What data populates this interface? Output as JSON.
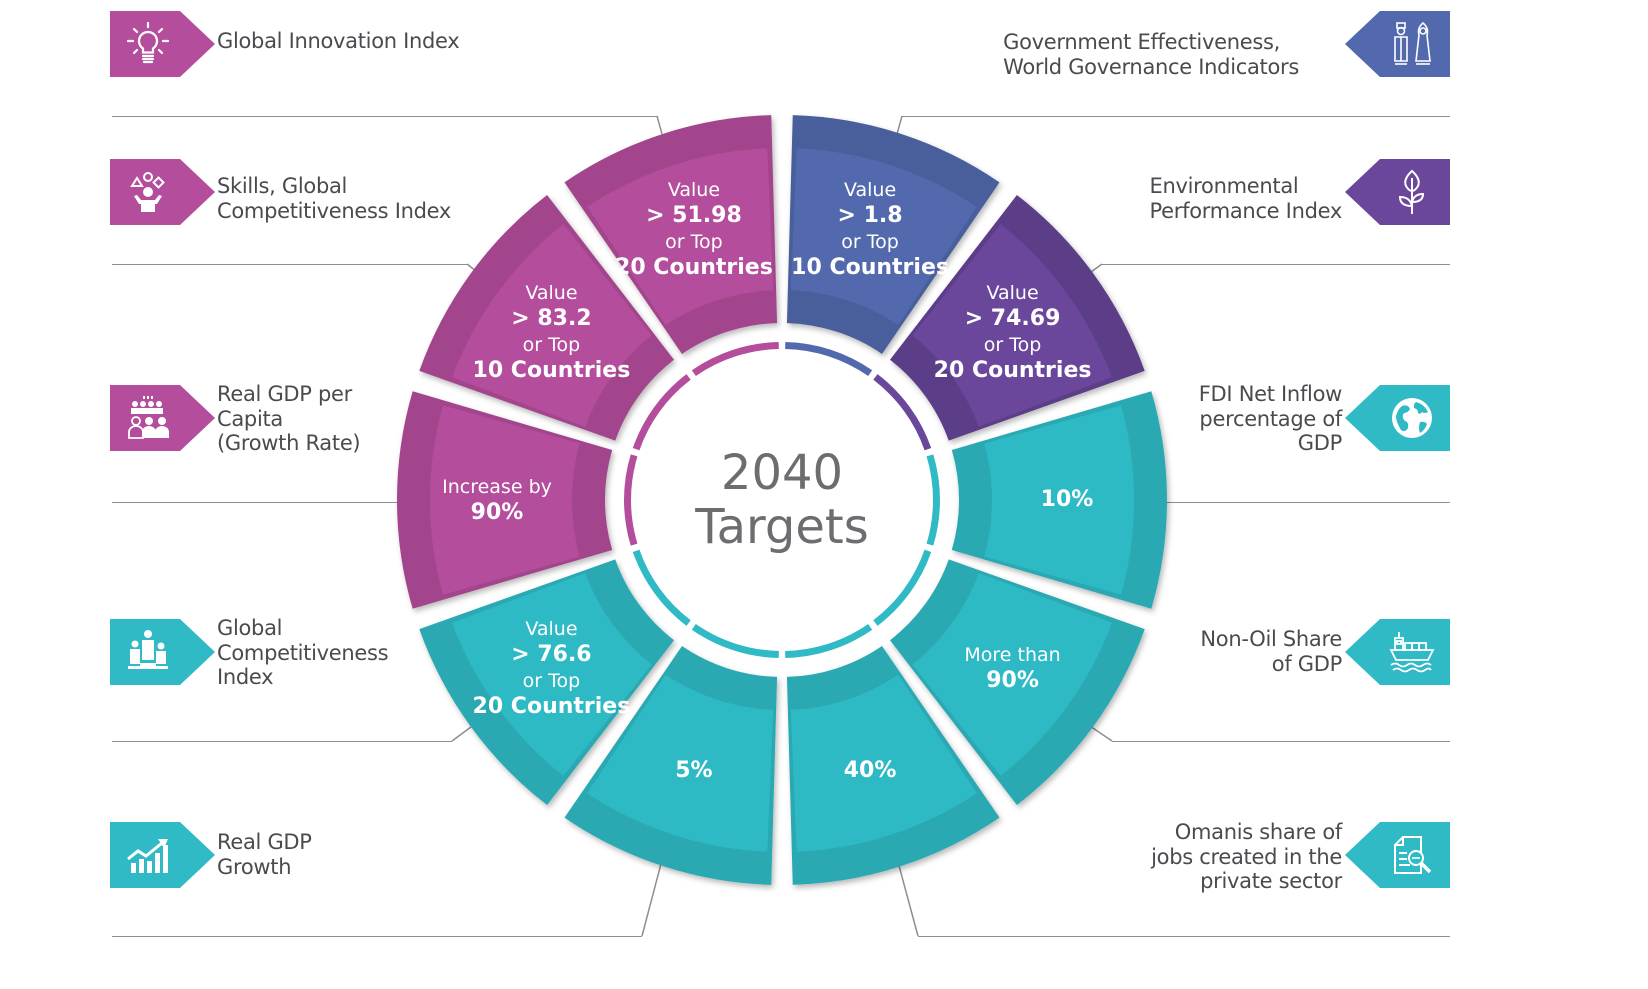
{
  "center": {
    "year": "2040",
    "word": "Targets"
  },
  "colors": {
    "magenta": "#b44e9c",
    "magenta_dark": "#a3458d",
    "blue": "#5269ae",
    "blue_dark": "#4a5e9c",
    "purple": "#6a479b",
    "purple_dark": "#5c3d88",
    "teal": "#2fbac5",
    "teal_dark": "#2aa9b3",
    "text": "#4b4a4f",
    "rule": "#8e8e8e"
  },
  "segments": [
    {
      "indicator": "Government Effectiveness, World Governance Indicators",
      "color": "blue",
      "line1": "Value",
      "line2": "> 1.8",
      "line3": "or Top",
      "line4": "10 Countries"
    },
    {
      "indicator": "Environmental Performance Index",
      "color": "purple",
      "line1": "Value",
      "line2": "> 74.69",
      "line3": "or Top",
      "line4": "20 Countries"
    },
    {
      "indicator": "FDI Net Inflow percentage of GDP",
      "color": "teal",
      "line1": "",
      "line2": "10%",
      "line3": "",
      "line4": ""
    },
    {
      "indicator": "Non-Oil Share of GDP",
      "color": "teal",
      "line1": "More than",
      "line2": "90%",
      "line3": "",
      "line4": ""
    },
    {
      "indicator": "Omanis share of jobs created in the private sector",
      "color": "teal",
      "line1": "",
      "line2": "40%",
      "line3": "",
      "line4": ""
    },
    {
      "indicator": "Real GDP Growth",
      "color": "teal",
      "line1": "",
      "line2": "5%",
      "line3": "",
      "line4": ""
    },
    {
      "indicator": "Global Competitiveness Index",
      "color": "teal",
      "line1": "Value",
      "line2": "> 76.6",
      "line3": "or Top",
      "line4": "20 Countries"
    },
    {
      "indicator": "Real GDP per Capita (Growth Rate)",
      "color": "magenta",
      "line1": "Increase by",
      "line2": "90%",
      "line3": "",
      "line4": ""
    },
    {
      "indicator": "Skills, Global Competitiveness Index",
      "color": "magenta",
      "line1": "Value",
      "line2": "> 83.2",
      "line3": "or Top",
      "line4": "10 Countries"
    },
    {
      "indicator": "Global Innovation Index",
      "color": "magenta",
      "line1": "Value",
      "line2": "> 51.98",
      "line3": "or Top",
      "line4": "20 Countries"
    }
  ],
  "left_labels": [
    {
      "lines": [
        "Global Innovation Index"
      ],
      "icon": "lightbulb-icon",
      "color": "magenta"
    },
    {
      "lines": [
        "Skills, Global",
        "Competitiveness Index"
      ],
      "icon": "juggling-person-icon",
      "color": "magenta"
    },
    {
      "lines": [
        "Real GDP per",
        "Capita",
        "(Growth Rate)"
      ],
      "icon": "population-icon",
      "color": "magenta"
    },
    {
      "lines": [
        "Global",
        "Competitiveness",
        "Index"
      ],
      "icon": "podium-icon",
      "color": "teal"
    },
    {
      "lines": [
        "Real GDP",
        "Growth"
      ],
      "icon": "growth-chart-icon",
      "color": "teal"
    }
  ],
  "right_labels": [
    {
      "lines": [
        "Government Effectiveness,",
        "World Governance Indicators"
      ],
      "icon": "officials-icon",
      "color": "blue"
    },
    {
      "lines": [
        "Environmental",
        "Performance Index"
      ],
      "icon": "plant-icon",
      "color": "purple"
    },
    {
      "lines": [
        "FDI Net Inflow",
        "percentage of",
        "GDP"
      ],
      "icon": "globe-icon",
      "color": "teal"
    },
    {
      "lines": [
        "Non-Oil Share",
        "of GDP"
      ],
      "icon": "cargo-ship-icon",
      "color": "teal"
    },
    {
      "lines": [
        "Omanis share of",
        "jobs created in the",
        "private sector"
      ],
      "icon": "document-search-icon",
      "color": "teal"
    }
  ]
}
